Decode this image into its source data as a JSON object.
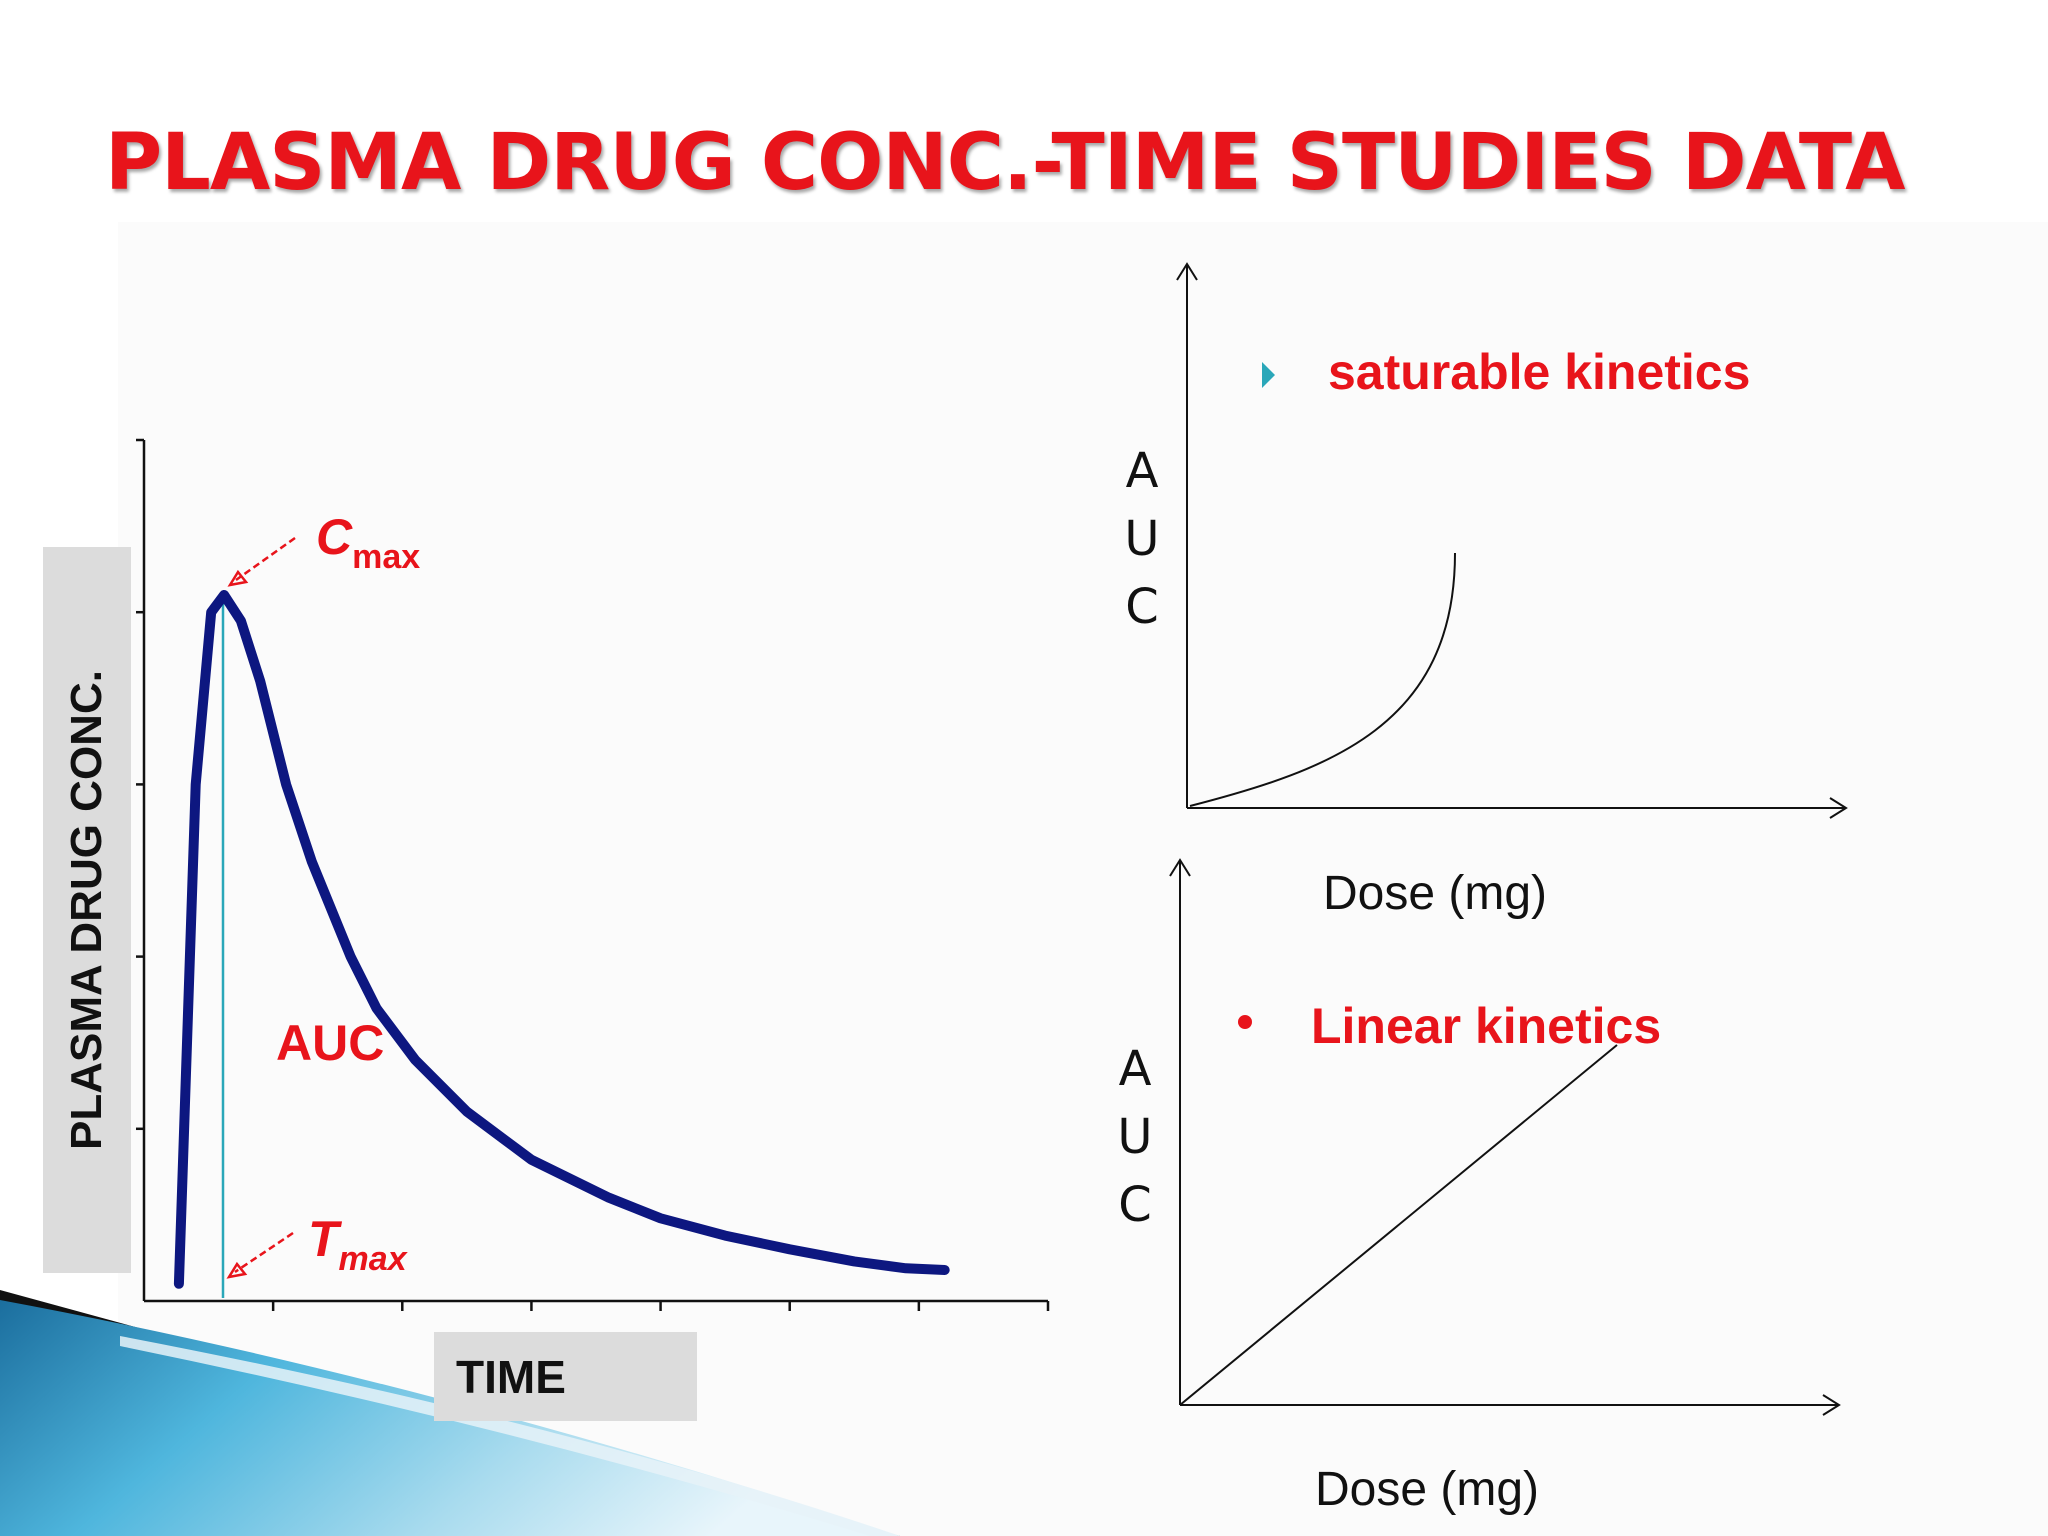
{
  "slide": {
    "title": "PLASMA DRUG CONC.-TIME STUDIES DATA"
  },
  "main_chart": {
    "ylabel": "PLASMA DRUG CONC.",
    "xlabel": "TIME",
    "cmax_letter": "C",
    "cmax_sub": "max",
    "tmax_letter": "T",
    "tmax_sub": "max",
    "auc_label": "AUC",
    "line_color": "#0d1780",
    "accent_color": "#e8141b"
  },
  "saturable_panel": {
    "bullet_icon": "teal-triangle-bullet-icon",
    "label": "saturable kinetics",
    "axis_letters": [
      "A",
      "U",
      "C"
    ],
    "xlabel": "Dose (mg)"
  },
  "linear_panel": {
    "bullet_icon": "red-dot-bullet-icon",
    "label": "Linear kinetics",
    "axis_letters": [
      "A",
      "U",
      "C"
    ],
    "xlabel": "Dose (mg)"
  },
  "chart_data": [
    {
      "type": "line",
      "title": "",
      "xlabel": "TIME",
      "ylabel": "PLASMA DRUG CONC.",
      "x": [
        0.27,
        0.4,
        0.52,
        0.62,
        0.75,
        0.9,
        1.1,
        1.3,
        1.6,
        1.8,
        2.1,
        2.5,
        3.0,
        3.6,
        4.0,
        4.5,
        5.0,
        5.5,
        5.9,
        6.2
      ],
      "y": [
        0.1,
        3.0,
        4.0,
        4.1,
        3.95,
        3.6,
        3.0,
        2.55,
        2.0,
        1.7,
        1.4,
        1.1,
        0.82,
        0.6,
        0.48,
        0.38,
        0.3,
        0.23,
        0.19,
        0.18
      ],
      "xlim": [
        0,
        7
      ],
      "ylim": [
        0,
        5
      ],
      "grid": false
    },
    {
      "type": "line",
      "title": "saturable kinetics",
      "xlabel": "Dose (mg)",
      "ylabel": "AUC",
      "curve": "convex, increasing steeply at high dose"
    },
    {
      "type": "line",
      "title": "Linear kinetics",
      "xlabel": "Dose (mg)",
      "ylabel": "AUC",
      "curve": "straight line through origin"
    }
  ]
}
